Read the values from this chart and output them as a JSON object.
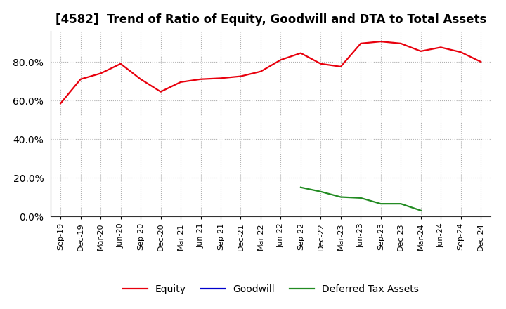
{
  "title": "[4582]  Trend of Ratio of Equity, Goodwill and DTA to Total Assets",
  "x_labels": [
    "Sep-19",
    "Dec-19",
    "Mar-20",
    "Jun-20",
    "Sep-20",
    "Dec-20",
    "Mar-21",
    "Jun-21",
    "Sep-21",
    "Dec-21",
    "Mar-22",
    "Jun-22",
    "Sep-22",
    "Dec-22",
    "Mar-23",
    "Jun-23",
    "Sep-23",
    "Dec-23",
    "Mar-24",
    "Jun-24",
    "Sep-24",
    "Dec-24"
  ],
  "equity": [
    0.585,
    0.71,
    0.74,
    0.79,
    0.71,
    0.645,
    0.695,
    0.71,
    0.715,
    0.725,
    0.75,
    0.81,
    0.845,
    0.79,
    0.775,
    0.895,
    0.905,
    0.895,
    0.855,
    0.875,
    0.85,
    0.8
  ],
  "dta": [
    null,
    null,
    null,
    null,
    null,
    null,
    null,
    null,
    null,
    null,
    null,
    null,
    0.15,
    0.128,
    0.1,
    0.095,
    0.065,
    0.065,
    0.03,
    null,
    null,
    null
  ],
  "equity_color": "#e8000d",
  "goodwill_color": "#0000cd",
  "dta_color": "#228b22",
  "grid_color": "#b0b0b0",
  "ylim": [
    0.0,
    0.96
  ],
  "yticks": [
    0.0,
    0.2,
    0.4,
    0.6,
    0.8
  ],
  "title_fontsize": 12,
  "legend_labels": [
    "Equity",
    "Goodwill",
    "Deferred Tax Assets"
  ]
}
